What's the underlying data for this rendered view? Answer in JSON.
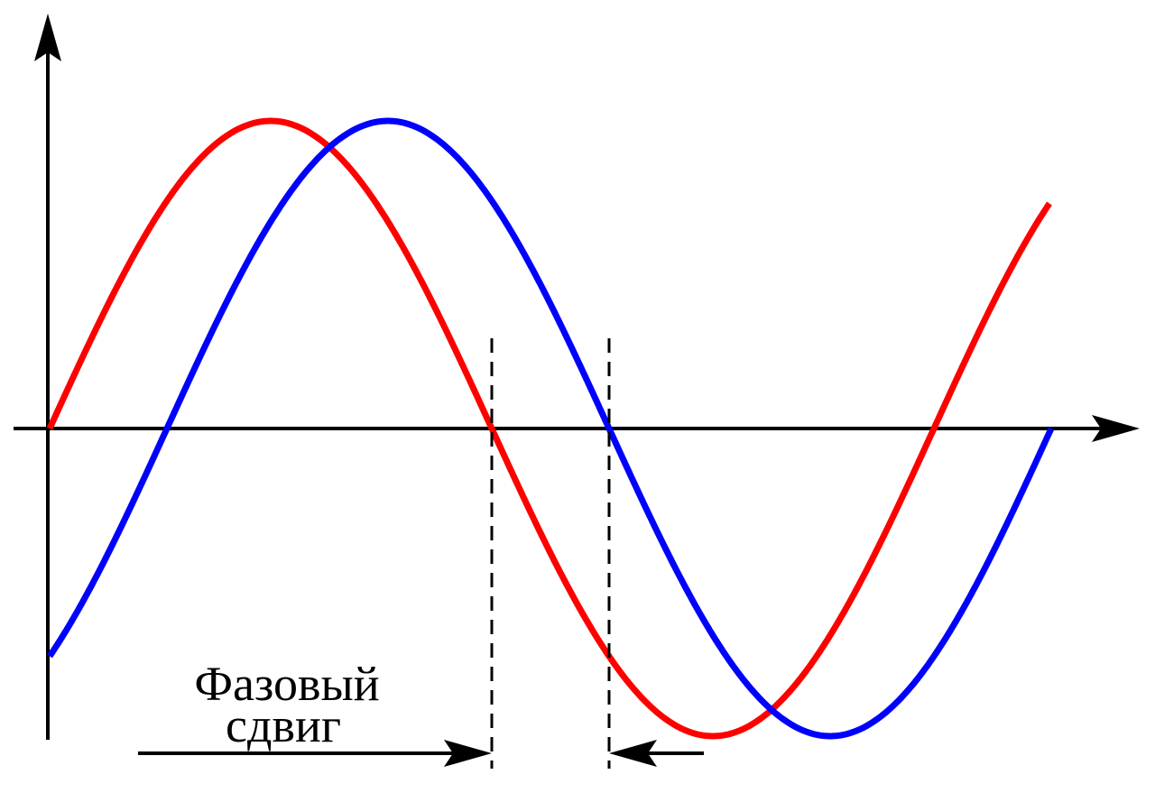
{
  "label": {
    "lines": [
      "Фазовый",
      "сдвиг"
    ]
  }
}
